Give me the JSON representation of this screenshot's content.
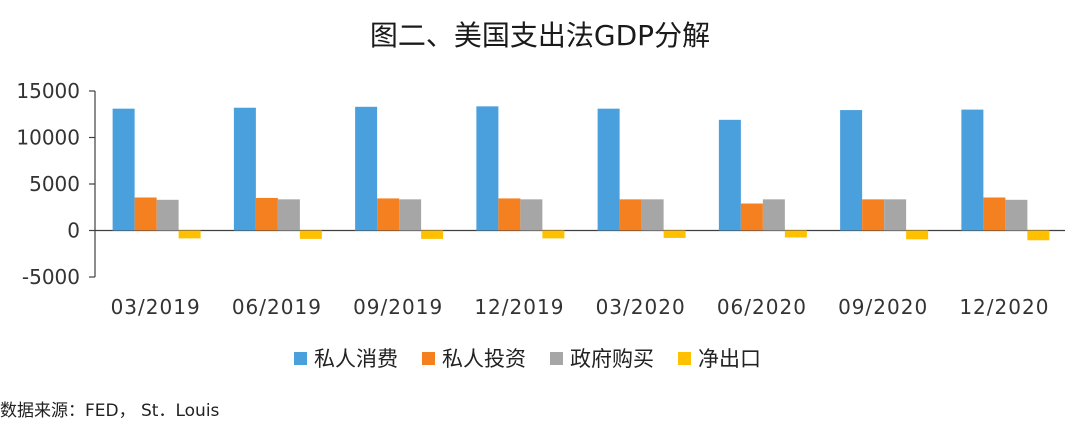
{
  "chart_data": {
    "type": "bar",
    "title": "图二、美国支出法GDP分解",
    "xlabel": "",
    "ylabel": "",
    "categories": [
      "03/2019",
      "06/2019",
      "09/2019",
      "12/2019",
      "03/2020",
      "06/2020",
      "09/2020",
      "12/2020"
    ],
    "series": [
      {
        "name": "私人消费",
        "color": "#4A9FDD",
        "values": [
          13100,
          13200,
          13300,
          13350,
          13100,
          11900,
          12950,
          13000
        ]
      },
      {
        "name": "私人投资",
        "color": "#F5801F",
        "values": [
          3550,
          3500,
          3450,
          3450,
          3350,
          2900,
          3350,
          3550
        ]
      },
      {
        "name": "政府购买",
        "color": "#A6A6A6",
        "values": [
          3300,
          3350,
          3350,
          3350,
          3350,
          3350,
          3350,
          3300
        ]
      },
      {
        "name": "净出口",
        "color": "#FFC000",
        "values": [
          -850,
          -900,
          -900,
          -850,
          -800,
          -750,
          -950,
          -1050
        ]
      }
    ],
    "yticks": [
      "15000",
      "10000",
      "5000",
      "0",
      "-5000"
    ],
    "ytick_values": [
      15000,
      10000,
      5000,
      0,
      -5000
    ],
    "ylim": [
      -5000,
      15000
    ],
    "grid": false,
    "legend": "bottom"
  },
  "source": "数据来源：FED， St．Louis"
}
